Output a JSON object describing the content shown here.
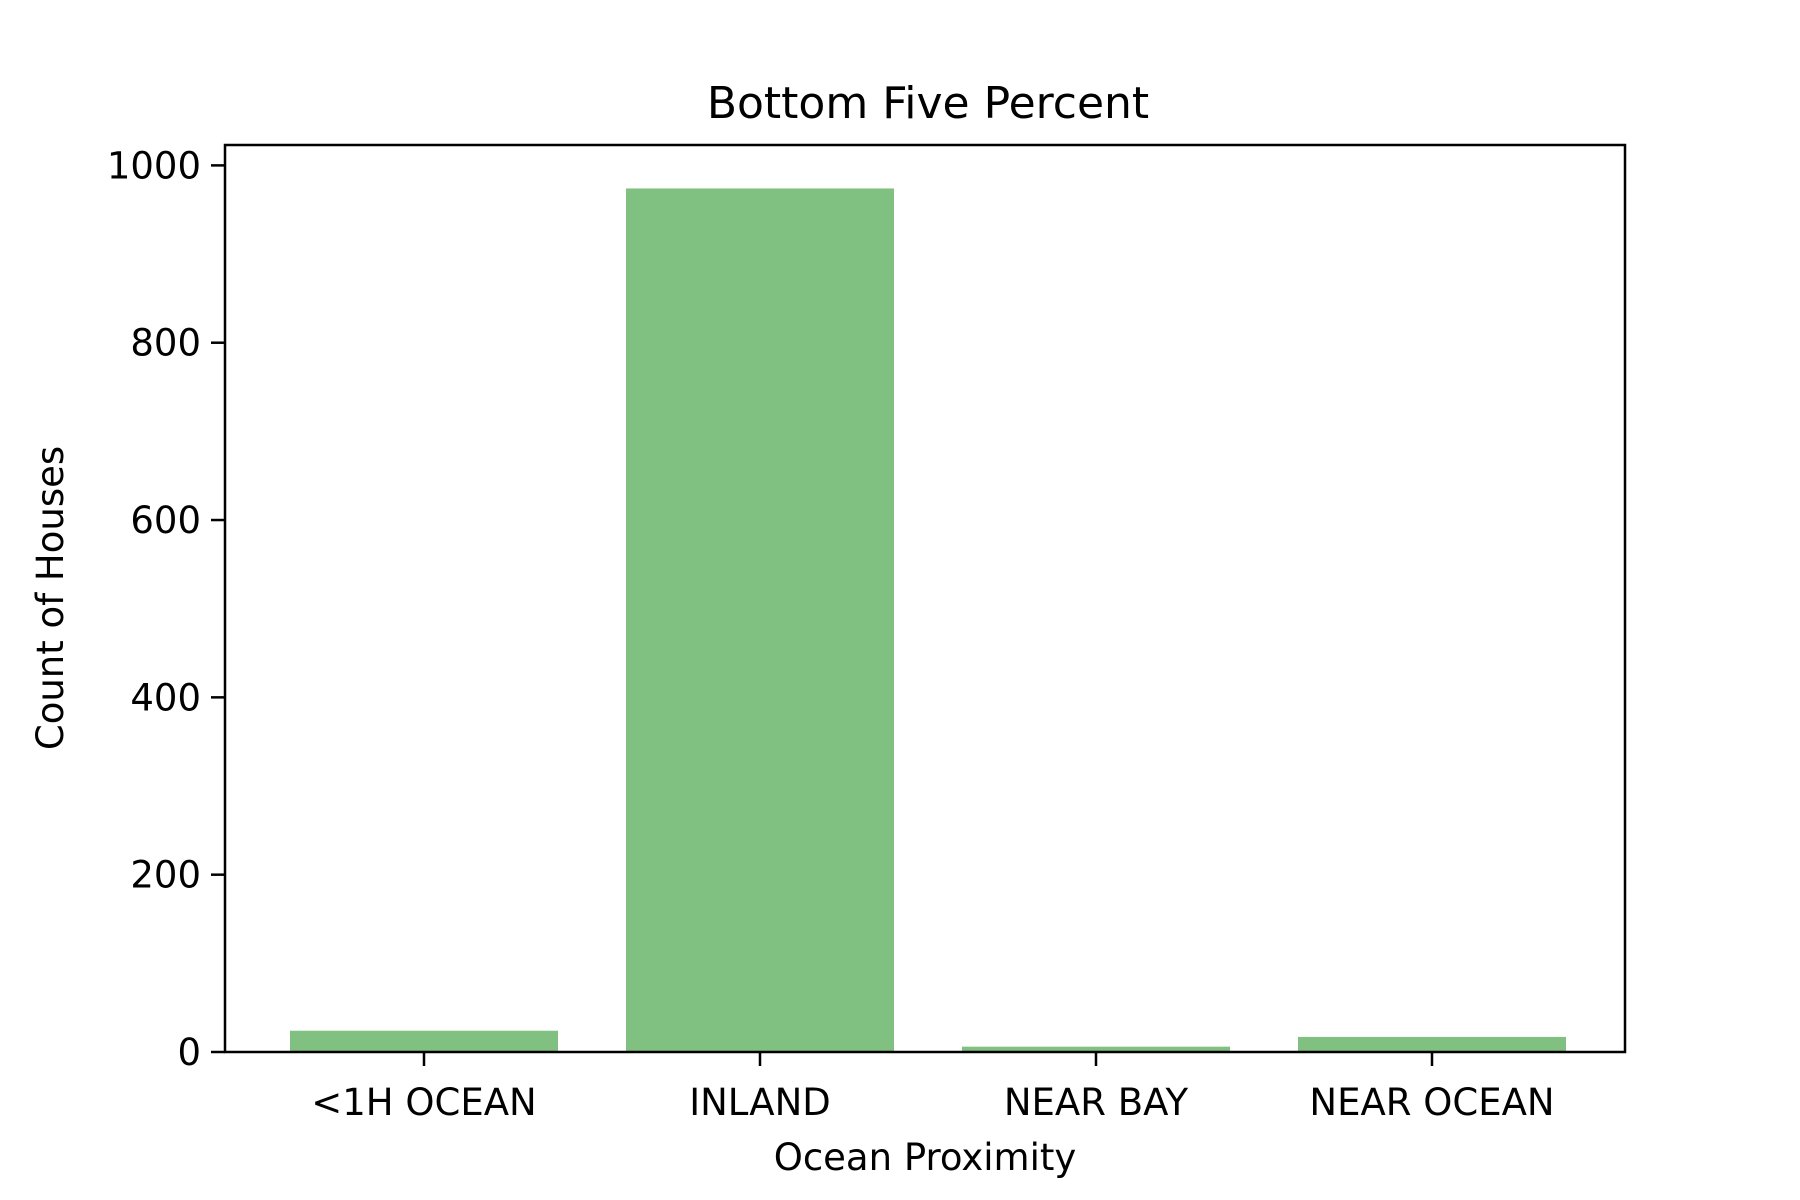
{
  "chart_data": {
    "type": "bar",
    "title": "Bottom Five Percent",
    "xlabel": "Ocean Proximity",
    "ylabel": "Count of Houses",
    "categories": [
      "<1H OCEAN",
      "INLAND",
      "NEAR BAY",
      "NEAR OCEAN"
    ],
    "values": [
      24,
      974,
      6,
      17
    ],
    "ylim": [
      0,
      1023
    ],
    "yticks": [
      0,
      200,
      400,
      600,
      800,
      1000
    ],
    "grid": false,
    "bar_color": "#80c080"
  }
}
